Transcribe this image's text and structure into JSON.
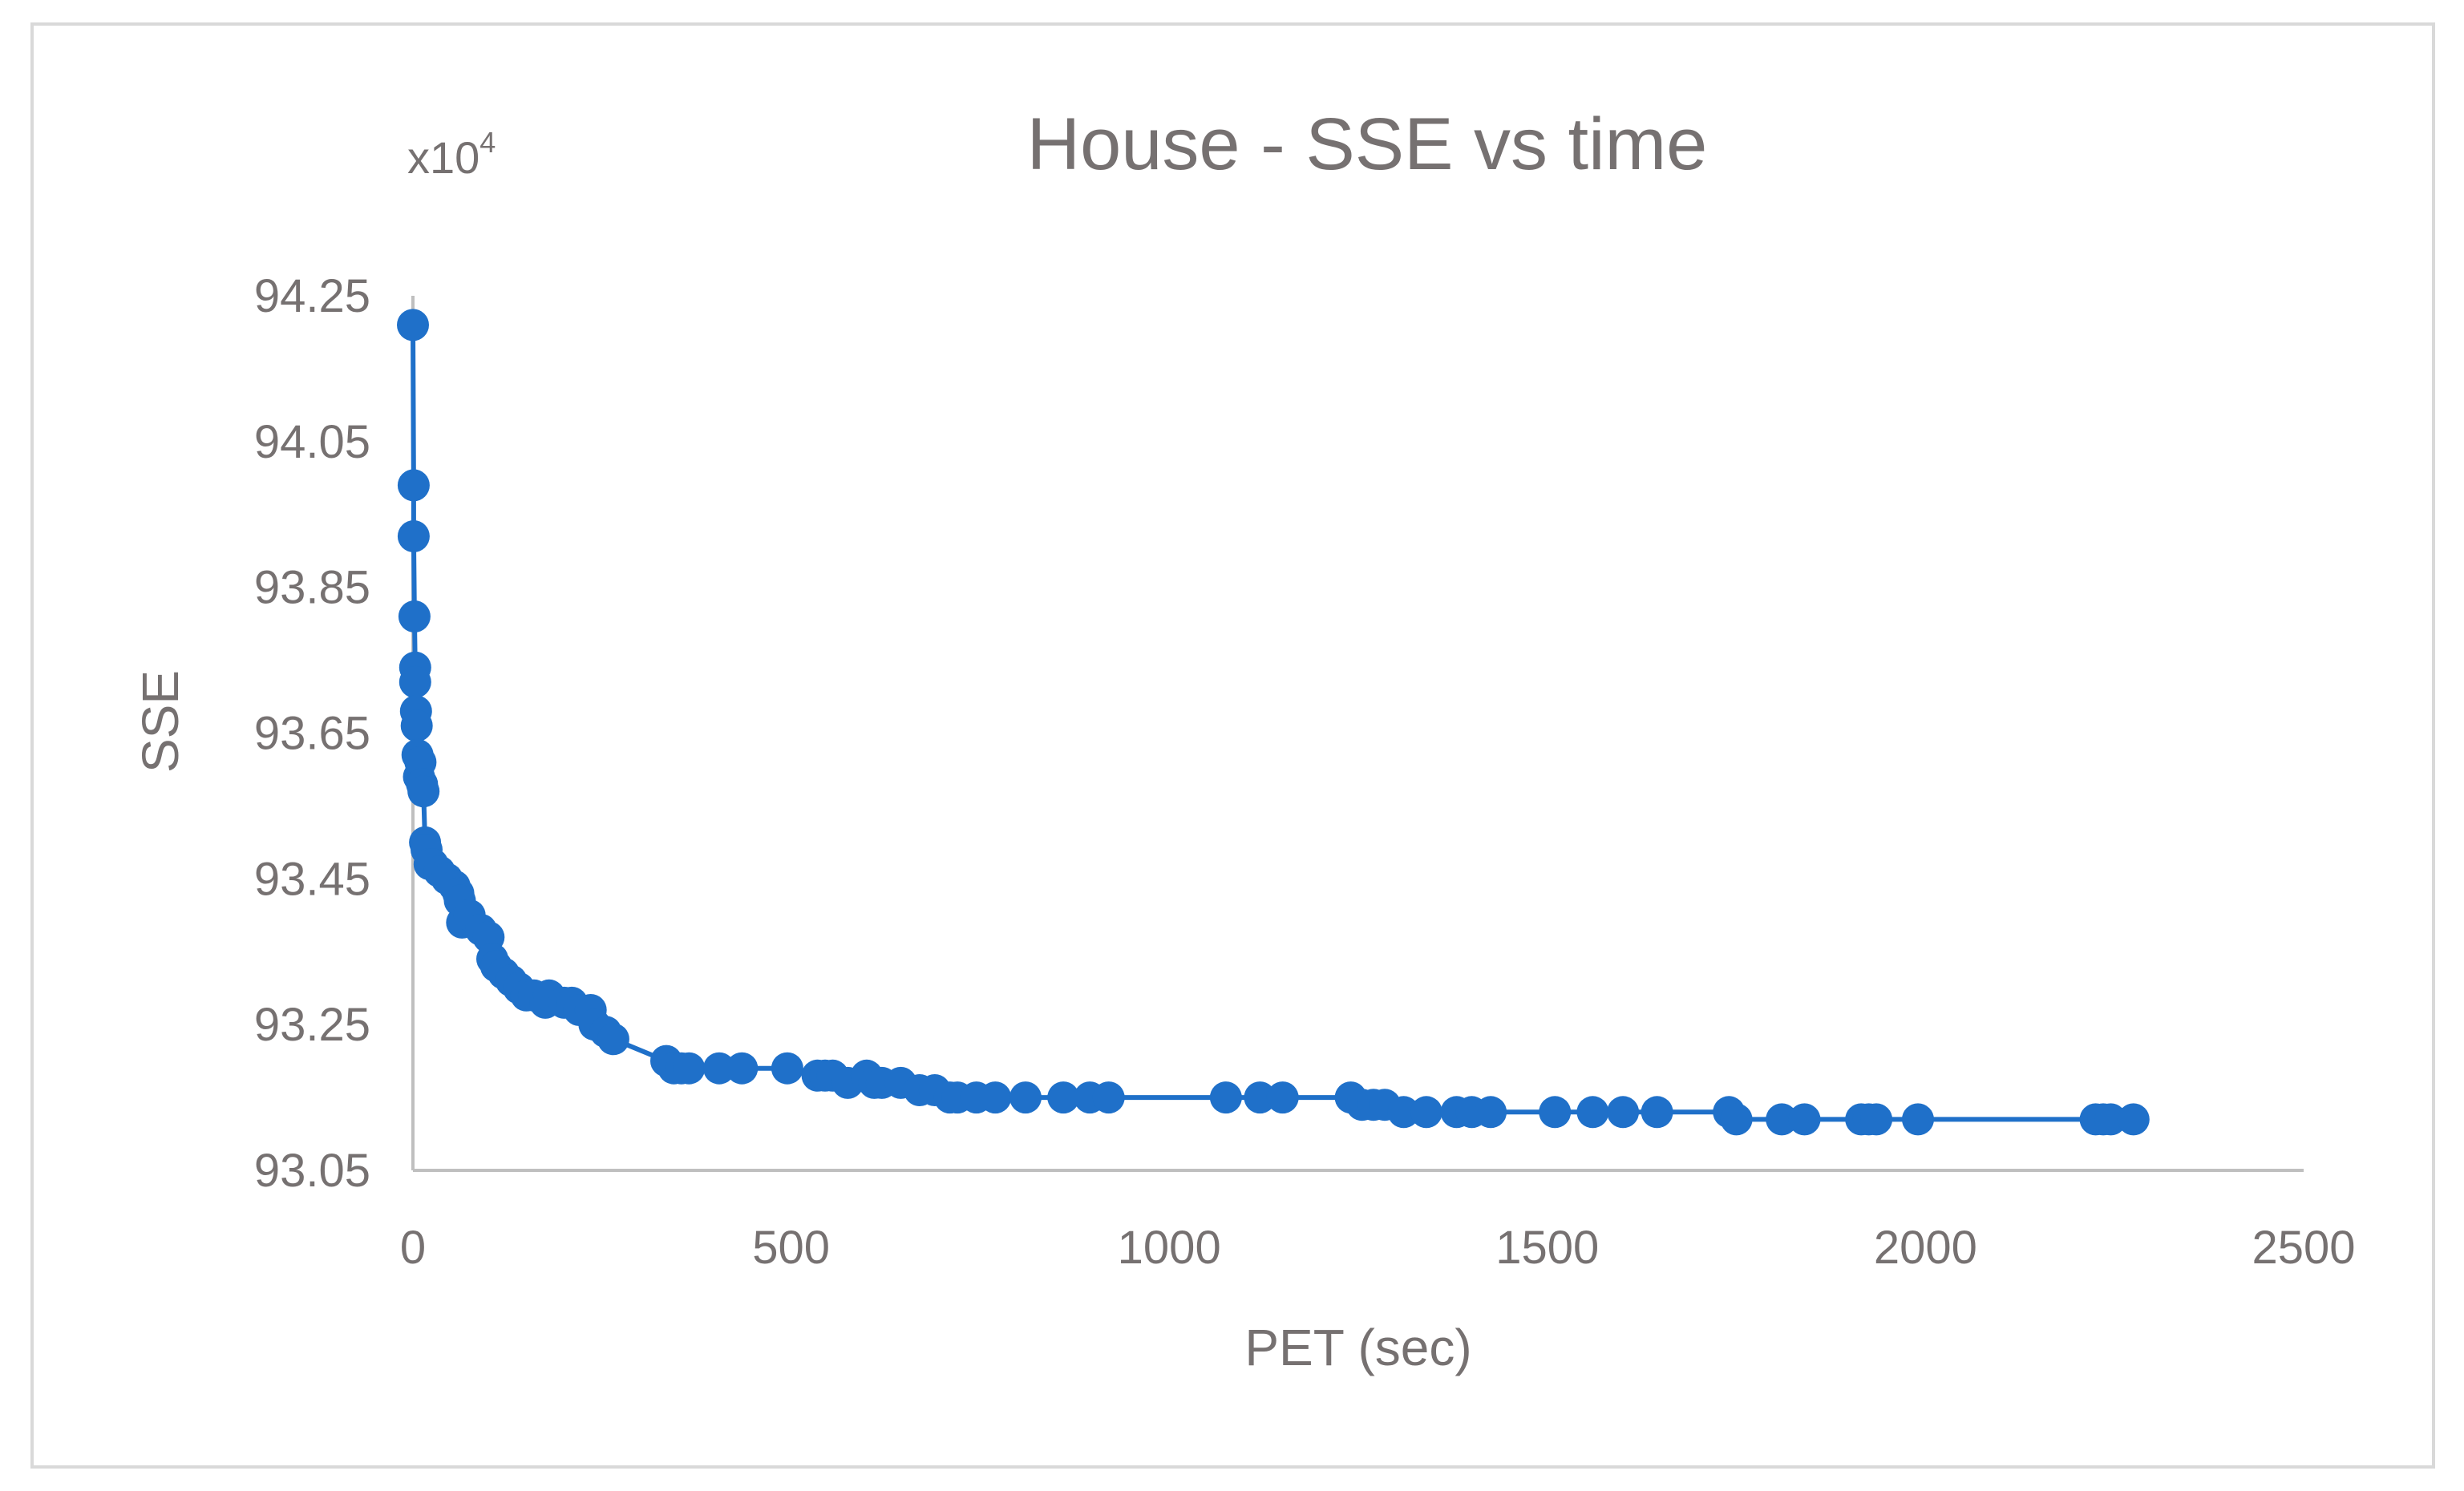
{
  "chart_data": {
    "type": "scatter",
    "title": "House - SSE vs time",
    "xlabel": "PET (sec)",
    "ylabel": "SSE",
    "y_multiplier_base": "x10",
    "y_multiplier_exp": "4",
    "xlim": [
      0,
      2500
    ],
    "ylim": [
      93.05,
      94.25
    ],
    "x_ticks": [
      0,
      500,
      1000,
      1500,
      2000,
      2500
    ],
    "x_tick_labels": [
      "0",
      "500",
      "1000",
      "1500",
      "2000",
      "2500"
    ],
    "y_ticks": [
      93.05,
      93.25,
      93.45,
      93.65,
      93.85,
      94.05,
      94.25
    ],
    "y_tick_labels": [
      "93.05",
      "93.25",
      "93.45",
      "93.65",
      "93.85",
      "94.05",
      "94.25"
    ],
    "grid": false,
    "legend": "none",
    "series": [
      {
        "name": "SSE",
        "color": "#1f70c9",
        "x": [
          0,
          1,
          1,
          2,
          3,
          3,
          4,
          5,
          6,
          8,
          10,
          12,
          14,
          16,
          18,
          22,
          26,
          35,
          45,
          55,
          60,
          62,
          65,
          75,
          90,
          100,
          105,
          110,
          120,
          130,
          140,
          150,
          160,
          175,
          180,
          200,
          210,
          220,
          235,
          240,
          255,
          265,
          335,
          345,
          355,
          365,
          405,
          435,
          495,
          535,
          545,
          555,
          575,
          600,
          610,
          620,
          645,
          670,
          690,
          710,
          720,
          745,
          770,
          810,
          860,
          895,
          920,
          1075,
          1120,
          1150,
          1240,
          1255,
          1270,
          1285,
          1310,
          1340,
          1380,
          1400,
          1425,
          1510,
          1560,
          1600,
          1645,
          1740,
          1750,
          1810,
          1840,
          1915,
          1925,
          1935,
          1990,
          2225,
          2235,
          2245,
          2275
        ],
        "y": [
          94.21,
          93.99,
          93.92,
          93.81,
          93.74,
          93.72,
          93.68,
          93.66,
          93.62,
          93.59,
          93.61,
          93.58,
          93.57,
          93.5,
          93.49,
          93.47,
          93.47,
          93.46,
          93.45,
          93.44,
          93.43,
          93.42,
          93.39,
          93.4,
          93.38,
          93.37,
          93.34,
          93.33,
          93.32,
          93.31,
          93.3,
          93.29,
          93.29,
          93.28,
          93.29,
          93.28,
          93.28,
          93.27,
          93.27,
          93.25,
          93.24,
          93.23,
          93.2,
          93.19,
          93.19,
          93.19,
          93.19,
          93.19,
          93.19,
          93.18,
          93.18,
          93.18,
          93.17,
          93.18,
          93.17,
          93.17,
          93.17,
          93.16,
          93.16,
          93.15,
          93.15,
          93.15,
          93.15,
          93.15,
          93.15,
          93.15,
          93.15,
          93.15,
          93.15,
          93.15,
          93.15,
          93.14,
          93.14,
          93.14,
          93.13,
          93.13,
          93.13,
          93.13,
          93.13,
          93.13,
          93.13,
          93.13,
          93.13,
          93.13,
          93.12,
          93.12,
          93.12,
          93.12,
          93.12,
          93.12,
          93.12,
          93.12,
          93.12,
          93.12,
          93.12
        ]
      }
    ]
  }
}
